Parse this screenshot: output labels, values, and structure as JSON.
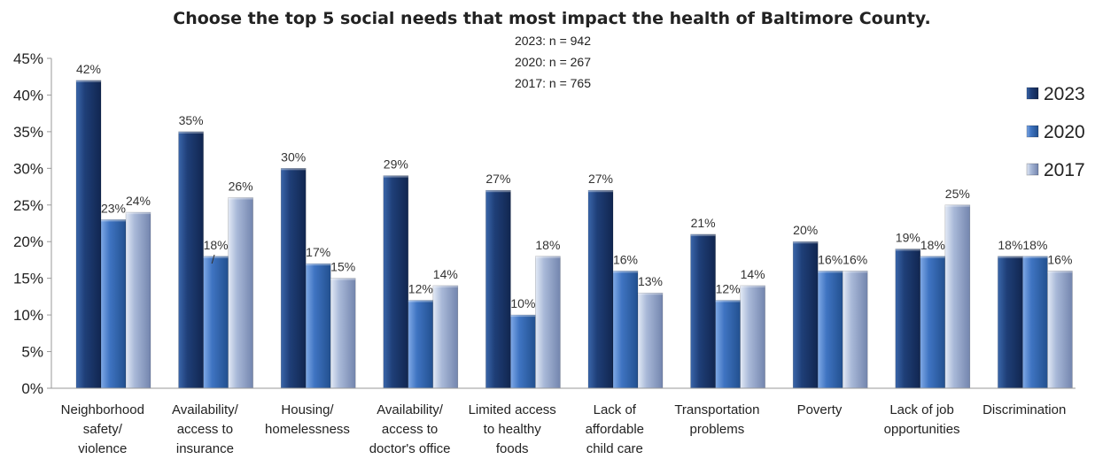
{
  "chart_data": {
    "type": "bar",
    "title": "Choose the top 5 social needs that most impact the health of Baltimore County.",
    "notes": [
      "2023: n = 942",
      "2020: n = 267",
      "2017: n = 765"
    ],
    "ylim": [
      0,
      45
    ],
    "ytick_step": 5,
    "ytick_format": "percent",
    "legend_position": "right",
    "categories": [
      [
        "Neighborhood",
        "safety/",
        "violence"
      ],
      [
        "Availability/",
        "access to",
        "insurance"
      ],
      [
        "Housing/",
        "homelessness"
      ],
      [
        "Availability/",
        "access to",
        "doctor's office"
      ],
      [
        "Limited access",
        "to healthy",
        "foods"
      ],
      [
        "Lack of",
        "affordable",
        "child care"
      ],
      [
        "Transportation",
        "problems"
      ],
      [
        "Poverty"
      ],
      [
        "Lack of job",
        "opportunities"
      ],
      [
        "Discrimination"
      ]
    ],
    "series": [
      {
        "name": "2023",
        "color": "#1F3F78",
        "values": [
          42,
          35,
          30,
          29,
          27,
          27,
          21,
          20,
          19,
          18
        ]
      },
      {
        "name": "2020",
        "color": "#3F74C2",
        "values": [
          23,
          18,
          17,
          12,
          10,
          16,
          12,
          16,
          18,
          18
        ]
      },
      {
        "name": "2017",
        "color": "#A9B9D8",
        "values": [
          24,
          26,
          15,
          14,
          18,
          13,
          14,
          16,
          25,
          16
        ]
      }
    ],
    "data_labels": [
      [
        "42%",
        "35%",
        "30%",
        "29%",
        "27%",
        "27%",
        "21%",
        "20%",
        "19%",
        "18%"
      ],
      [
        "23%",
        "18%",
        "17%",
        "12%",
        "10%",
        "16%",
        "12%",
        "16%",
        "18%",
        "18%"
      ],
      [
        "24%",
        "26%",
        "15%",
        "14%",
        "18%",
        "13%",
        "14%",
        "16%",
        "25%",
        "16%"
      ]
    ],
    "extra_label": "/"
  }
}
